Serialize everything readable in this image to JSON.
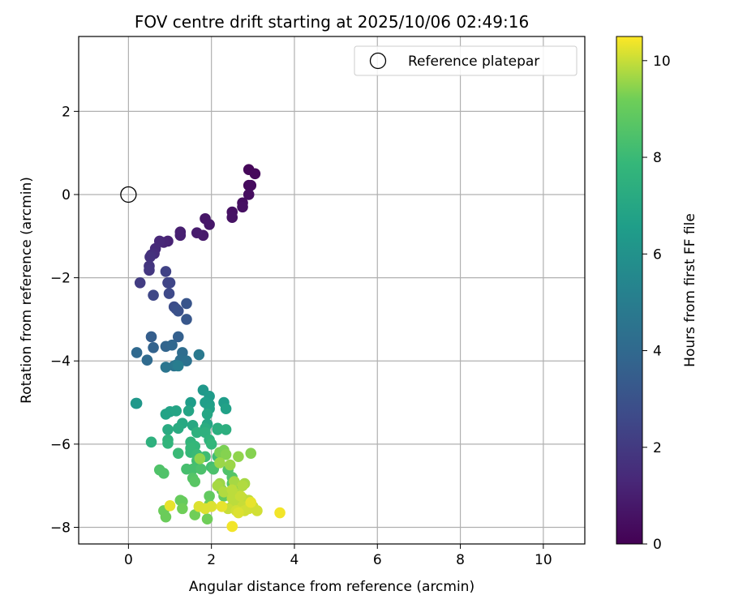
{
  "chart_data": {
    "type": "scatter",
    "title": "FOV centre drift starting at 2025/10/06 02:49:16",
    "xlabel": "Angular distance from reference (arcmin)",
    "ylabel": "Rotation from reference (arcmin)",
    "xlim": [
      -1.2,
      11.0
    ],
    "ylim": [
      -8.4,
      3.8
    ],
    "xticks": [
      0,
      2,
      4,
      6,
      8,
      10
    ],
    "yticks": [
      -8,
      -6,
      -4,
      -2,
      0,
      2
    ],
    "grid": true,
    "legend": {
      "location": "top-right",
      "entries": [
        "Reference platepar"
      ]
    },
    "reference_point": {
      "x": 0,
      "y": 0,
      "label": "Reference platepar"
    },
    "colorbar": {
      "label": "Hours from first FF file",
      "range": [
        0,
        10.5
      ],
      "ticks": [
        0,
        2,
        4,
        6,
        8,
        10
      ],
      "colormap": "viridis"
    },
    "points": [
      [
        2.9,
        0.6,
        0.2
      ],
      [
        3.05,
        0.5,
        0.25
      ],
      [
        2.9,
        0.22,
        0.3
      ],
      [
        2.95,
        0.22,
        0.35
      ],
      [
        2.9,
        0.0,
        0.4
      ],
      [
        2.75,
        -0.2,
        0.45
      ],
      [
        2.75,
        -0.3,
        0.5
      ],
      [
        2.5,
        -0.42,
        0.55
      ],
      [
        2.5,
        -0.55,
        0.6
      ],
      [
        1.85,
        -0.58,
        0.7
      ],
      [
        1.95,
        -0.72,
        0.75
      ],
      [
        1.8,
        -0.98,
        0.85
      ],
      [
        1.65,
        -0.92,
        0.9
      ],
      [
        1.25,
        -0.9,
        1.0
      ],
      [
        1.25,
        -0.98,
        1.05
      ],
      [
        0.95,
        -1.12,
        1.15
      ],
      [
        0.85,
        -1.15,
        1.2
      ],
      [
        0.75,
        -1.12,
        1.3
      ],
      [
        0.65,
        -1.3,
        1.4
      ],
      [
        0.62,
        -1.42,
        1.5
      ],
      [
        0.55,
        -1.45,
        1.6
      ],
      [
        0.52,
        -1.5,
        1.7
      ],
      [
        0.5,
        -1.72,
        1.8
      ],
      [
        0.5,
        -1.82,
        1.9
      ],
      [
        0.28,
        -2.12,
        2.1
      ],
      [
        0.9,
        -1.85,
        2.3
      ],
      [
        0.95,
        -2.12,
        2.4
      ],
      [
        1.0,
        -2.12,
        2.45
      ],
      [
        0.6,
        -2.42,
        2.5
      ],
      [
        0.98,
        -2.38,
        2.6
      ],
      [
        1.1,
        -2.7,
        2.75
      ],
      [
        1.15,
        -2.75,
        2.85
      ],
      [
        1.2,
        -2.8,
        2.95
      ],
      [
        1.4,
        -2.62,
        3.1
      ],
      [
        1.4,
        -3.0,
        3.2
      ],
      [
        0.55,
        -3.42,
        3.5
      ],
      [
        1.2,
        -3.42,
        3.6
      ],
      [
        0.6,
        -3.68,
        3.7
      ],
      [
        0.9,
        -3.65,
        3.8
      ],
      [
        1.05,
        -3.62,
        3.9
      ],
      [
        0.2,
        -3.8,
        4.0
      ],
      [
        0.45,
        -3.98,
        4.1
      ],
      [
        1.3,
        -3.8,
        4.2
      ],
      [
        1.25,
        -3.98,
        4.3
      ],
      [
        1.4,
        -4.0,
        4.4
      ],
      [
        1.1,
        -4.12,
        4.5
      ],
      [
        0.9,
        -4.15,
        4.6
      ],
      [
        1.15,
        -4.1,
        4.7
      ],
      [
        1.7,
        -3.85,
        4.8
      ],
      [
        1.2,
        -4.12,
        5.0
      ],
      [
        0.2,
        -5.02,
        6.2
      ],
      [
        1.8,
        -4.7,
        6.3
      ],
      [
        1.95,
        -4.85,
        6.4
      ],
      [
        1.5,
        -5.0,
        6.5
      ],
      [
        2.3,
        -5.0,
        6.5
      ],
      [
        1.85,
        -5.0,
        6.6
      ],
      [
        1.95,
        -5.05,
        6.6
      ],
      [
        1.95,
        -5.15,
        6.7
      ],
      [
        2.35,
        -5.15,
        6.7
      ],
      [
        0.9,
        -5.28,
        6.8
      ],
      [
        1.0,
        -5.22,
        6.8
      ],
      [
        1.15,
        -5.2,
        6.9
      ],
      [
        1.45,
        -5.2,
        6.9
      ],
      [
        1.9,
        -5.28,
        7.0
      ],
      [
        1.9,
        -5.52,
        7.0
      ],
      [
        1.3,
        -5.5,
        7.1
      ],
      [
        1.55,
        -5.55,
        7.1
      ],
      [
        0.95,
        -5.65,
        7.2
      ],
      [
        1.2,
        -5.62,
        7.2
      ],
      [
        1.85,
        -5.62,
        7.3
      ],
      [
        2.15,
        -5.62,
        7.3
      ],
      [
        2.15,
        -5.65,
        7.4
      ],
      [
        2.35,
        -5.65,
        7.4
      ],
      [
        1.65,
        -5.72,
        7.5
      ],
      [
        1.85,
        -5.72,
        7.5
      ],
      [
        1.95,
        -5.9,
        7.6
      ],
      [
        0.95,
        -5.9,
        7.6
      ],
      [
        0.95,
        -5.98,
        7.7
      ],
      [
        1.5,
        -5.95,
        7.7
      ],
      [
        2.0,
        -6.0,
        7.8
      ],
      [
        1.6,
        -6.05,
        7.8
      ],
      [
        1.5,
        -6.1,
        7.9
      ],
      [
        1.5,
        -6.2,
        7.9
      ],
      [
        1.2,
        -6.22,
        8.0
      ],
      [
        1.65,
        -6.25,
        8.0
      ],
      [
        1.85,
        -6.3,
        8.1
      ],
      [
        2.15,
        -6.3,
        8.1
      ],
      [
        1.65,
        -6.4,
        8.2
      ],
      [
        2.0,
        -6.55,
        8.2
      ],
      [
        1.4,
        -6.6,
        8.3
      ],
      [
        1.55,
        -6.6,
        8.3
      ],
      [
        1.75,
        -6.6,
        8.4
      ],
      [
        2.05,
        -6.6,
        8.4
      ],
      [
        2.4,
        -6.62,
        8.5
      ],
      [
        0.75,
        -6.62,
        8.5
      ],
      [
        0.85,
        -6.7,
        8.5
      ],
      [
        2.5,
        -6.8,
        8.6
      ],
      [
        1.55,
        -6.82,
        8.6
      ],
      [
        1.6,
        -6.9,
        8.7
      ],
      [
        2.5,
        -6.95,
        8.7
      ],
      [
        2.65,
        -7.0,
        8.8
      ],
      [
        2.25,
        -7.1,
        8.8
      ],
      [
        1.95,
        -7.25,
        8.9
      ],
      [
        2.3,
        -7.25,
        8.9
      ],
      [
        2.55,
        -7.3,
        8.9
      ],
      [
        1.25,
        -7.35,
        9.0
      ],
      [
        1.3,
        -7.38,
        9.0
      ],
      [
        1.95,
        -7.45,
        9.0
      ],
      [
        2.5,
        -7.5,
        9.1
      ],
      [
        0.85,
        -7.6,
        9.1
      ],
      [
        0.9,
        -7.75,
        9.1
      ],
      [
        1.3,
        -7.55,
        9.2
      ],
      [
        1.6,
        -7.7,
        9.2
      ],
      [
        1.9,
        -7.8,
        9.2
      ],
      [
        0.55,
        -5.95,
        7.5
      ],
      [
        0.18,
        -5.02,
        6.3
      ],
      [
        2.3,
        -6.15,
        9.3
      ],
      [
        2.2,
        -6.2,
        9.3
      ],
      [
        2.35,
        -6.25,
        9.4
      ],
      [
        2.95,
        -6.22,
        9.4
      ],
      [
        2.65,
        -6.3,
        9.5
      ],
      [
        1.72,
        -6.35,
        9.5
      ],
      [
        2.2,
        -6.45,
        9.6
      ],
      [
        2.45,
        -6.5,
        9.6
      ],
      [
        2.2,
        -6.95,
        9.6
      ],
      [
        2.15,
        -7.0,
        9.7
      ],
      [
        2.55,
        -6.9,
        9.7
      ],
      [
        2.8,
        -6.95,
        9.7
      ],
      [
        2.75,
        -7.0,
        9.8
      ],
      [
        2.3,
        -7.15,
        9.8
      ],
      [
        2.6,
        -7.2,
        9.8
      ],
      [
        2.5,
        -7.3,
        9.9
      ],
      [
        2.75,
        -7.3,
        9.9
      ],
      [
        2.9,
        -7.35,
        9.9
      ],
      [
        2.55,
        -7.45,
        9.9
      ],
      [
        2.75,
        -7.5,
        10.0
      ],
      [
        3.0,
        -7.5,
        10.0
      ],
      [
        2.4,
        -7.55,
        10.0
      ],
      [
        2.9,
        -7.55,
        10.1
      ],
      [
        2.6,
        -7.6,
        10.1
      ],
      [
        2.8,
        -7.6,
        10.1
      ],
      [
        3.1,
        -7.6,
        10.1
      ],
      [
        2.65,
        -7.65,
        10.2
      ],
      [
        1.7,
        -7.5,
        10.2
      ],
      [
        1.85,
        -7.55,
        10.2
      ],
      [
        2.0,
        -7.5,
        10.2
      ],
      [
        2.25,
        -7.5,
        10.3
      ],
      [
        1.0,
        -7.48,
        10.3
      ],
      [
        3.65,
        -7.65,
        10.4
      ],
      [
        2.5,
        -7.98,
        10.4
      ],
      [
        2.95,
        -7.4,
        10.3
      ],
      [
        2.7,
        -7.25,
        10.0
      ],
      [
        2.5,
        -7.1,
        9.9
      ]
    ]
  }
}
